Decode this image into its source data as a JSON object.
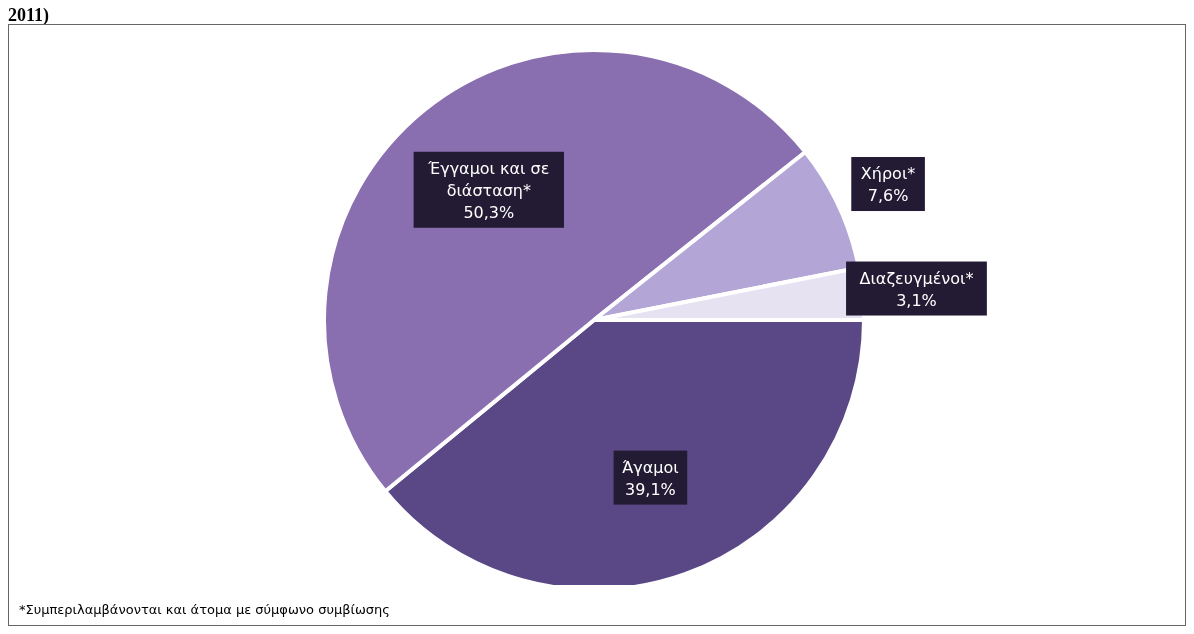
{
  "chart_data": {
    "type": "pie",
    "title": "2011)",
    "categories": [
      "Άγαμοι",
      "Έγγαμοι και σε διάσταση*",
      "Χήροι*",
      "Διαζευγμένοι*"
    ],
    "values": [
      39.1,
      50.3,
      7.6,
      3.1
    ],
    "colors": [
      "#5a4785",
      "#8a6fb0",
      "#b3a6d6",
      "#e6e2f2"
    ],
    "value_labels": [
      "39,1%",
      "50,3%",
      "7,6%",
      "3,1%"
    ],
    "annotations": [
      "*Συμπεριλαμβάνονται και άτομα με σύμφωνο συμβίωσης"
    ]
  }
}
